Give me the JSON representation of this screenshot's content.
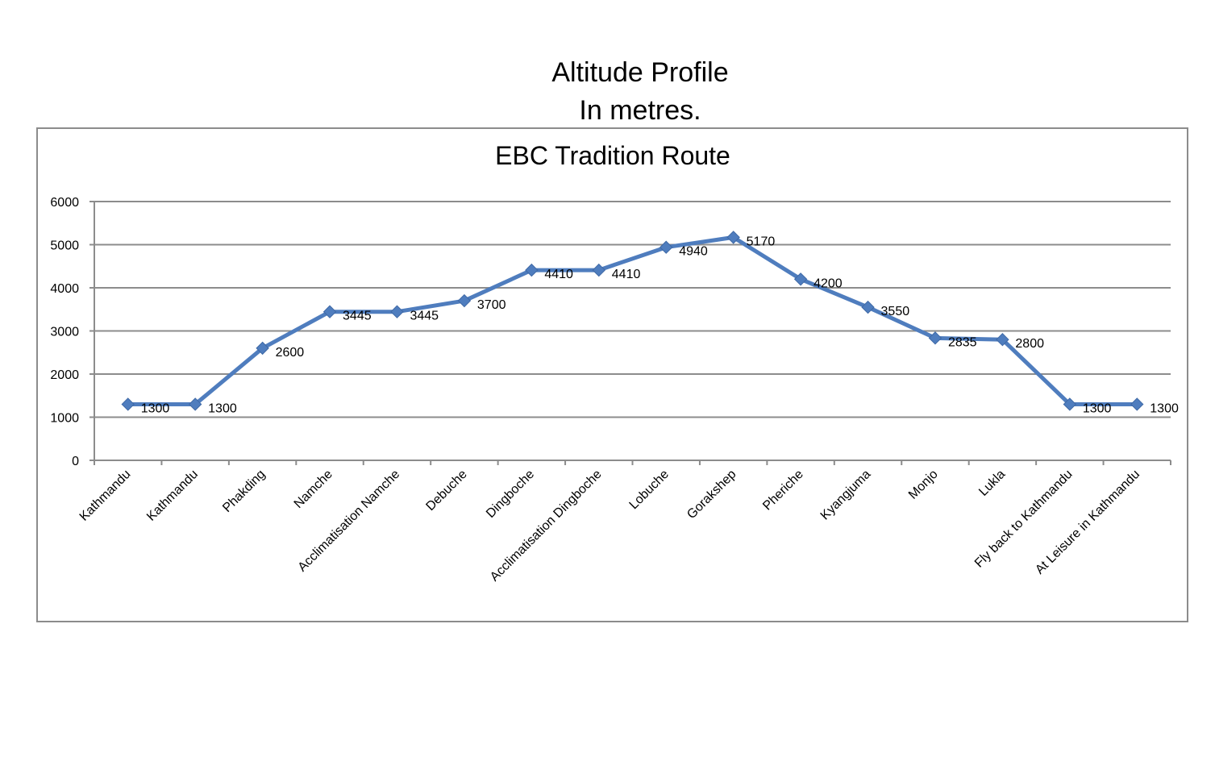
{
  "page": {
    "heading_line1": "Altitude Profile",
    "heading_line2": "In metres."
  },
  "chart_data": {
    "type": "line",
    "title": "EBC Tradition Route",
    "xlabel": "",
    "ylabel": "",
    "ylim": [
      0,
      6000
    ],
    "yticks": [
      0,
      1000,
      2000,
      3000,
      4000,
      5000,
      6000
    ],
    "grid": true,
    "legend": "none",
    "categories": [
      "Kathmandu",
      "Kathmandu",
      "Phakding",
      "Namche",
      "Acclimatisation Namche",
      "Debuche",
      "Dingboche",
      "Acclimatisation Dingboche",
      "Lobuche",
      "Gorakshep",
      "Pheriche",
      "Kyangjuma",
      "Monjo",
      "Lukla",
      "Fly back to Kathmandu",
      "At Leisure in Kathmandu"
    ],
    "series": [
      {
        "values": [
          1300,
          1300,
          2600,
          3445,
          3445,
          3700,
          4410,
          4410,
          4940,
          5170,
          4200,
          3550,
          2835,
          2800,
          1300,
          1300
        ],
        "data_labels": true,
        "color": "#4f7dbe",
        "marker": "diamond"
      }
    ]
  }
}
